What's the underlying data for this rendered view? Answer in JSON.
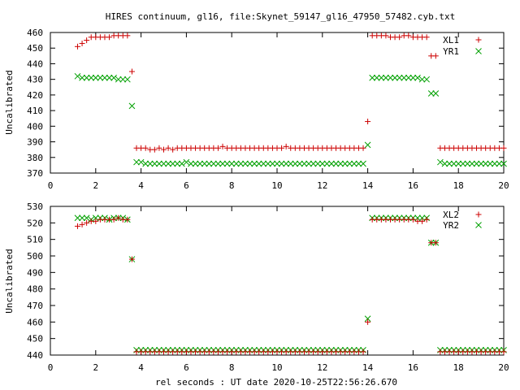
{
  "title": "HIRES continuum, gl16, file:Skynet_59147_gl16_47950_57482.cyb.txt",
  "x_axis_label": "rel seconds : UT date 2020-10-25T22:56:26.670",
  "chart_data": [
    {
      "type": "scatter",
      "ylabel": "Uncalibrated",
      "xlim": [
        0,
        20
      ],
      "ylim": [
        370,
        460
      ],
      "xticks": [
        "0",
        "2",
        "4",
        "6",
        "8",
        "10",
        "12",
        "14",
        "16",
        "18",
        "20"
      ],
      "yticks": [
        "370",
        "380",
        "390",
        "400",
        "410",
        "420",
        "430",
        "440",
        "450",
        "460"
      ],
      "legend_position": "top-right",
      "series": [
        {
          "name": "XL1",
          "marker": "plus",
          "color": "#cc0000",
          "x": [
            1.2,
            1.4,
            1.6,
            1.8,
            2.0,
            2.2,
            2.4,
            2.6,
            2.8,
            3.0,
            3.2,
            3.4,
            3.6,
            3.8,
            4.0,
            4.2,
            4.4,
            4.6,
            4.8,
            5.0,
            5.2,
            5.4,
            5.6,
            5.8,
            6.0,
            6.2,
            6.4,
            6.6,
            6.8,
            7.0,
            7.2,
            7.4,
            7.6,
            7.8,
            8.0,
            8.2,
            8.4,
            8.6,
            8.8,
            9.0,
            9.2,
            9.4,
            9.6,
            9.8,
            10.0,
            10.2,
            10.4,
            10.6,
            10.8,
            11.0,
            11.2,
            11.4,
            11.6,
            11.8,
            12.0,
            12.2,
            12.4,
            12.6,
            12.8,
            13.0,
            13.2,
            13.4,
            13.6,
            13.8,
            14.0,
            14.2,
            14.4,
            14.6,
            14.8,
            15.0,
            15.2,
            15.4,
            15.6,
            15.8,
            16.0,
            16.2,
            16.4,
            16.6,
            16.8,
            17.0,
            17.2,
            17.4,
            17.6,
            17.8,
            18.0,
            18.2,
            18.4,
            18.6,
            18.8,
            19.0,
            19.2,
            19.4,
            19.6,
            19.8,
            20.0
          ],
          "y": [
            451,
            453,
            455,
            457,
            457,
            457,
            457,
            457,
            458,
            458,
            458,
            458,
            435,
            386,
            386,
            386,
            385,
            385,
            386,
            385,
            386,
            385,
            386,
            386,
            386,
            386,
            386,
            386,
            386,
            386,
            386,
            386,
            387,
            386,
            386,
            386,
            386,
            386,
            386,
            386,
            386,
            386,
            386,
            386,
            386,
            386,
            387,
            386,
            386,
            386,
            386,
            386,
            386,
            386,
            386,
            386,
            386,
            386,
            386,
            386,
            386,
            386,
            386,
            386,
            403,
            458,
            458,
            458,
            458,
            457,
            457,
            457,
            458,
            458,
            457,
            457,
            457,
            457,
            445,
            445,
            386,
            386,
            386,
            386,
            386,
            386,
            386,
            386,
            386,
            386,
            386,
            386,
            386,
            386,
            386
          ]
        },
        {
          "name": "YR1",
          "marker": "cross",
          "color": "#00a000",
          "x": [
            1.2,
            1.4,
            1.6,
            1.8,
            2.0,
            2.2,
            2.4,
            2.6,
            2.8,
            3.0,
            3.2,
            3.4,
            3.6,
            3.8,
            4.0,
            4.2,
            4.4,
            4.6,
            4.8,
            5.0,
            5.2,
            5.4,
            5.6,
            5.8,
            6.0,
            6.2,
            6.4,
            6.6,
            6.8,
            7.0,
            7.2,
            7.4,
            7.6,
            7.8,
            8.0,
            8.2,
            8.4,
            8.6,
            8.8,
            9.0,
            9.2,
            9.4,
            9.6,
            9.8,
            10.0,
            10.2,
            10.4,
            10.6,
            10.8,
            11.0,
            11.2,
            11.4,
            11.6,
            11.8,
            12.0,
            12.2,
            12.4,
            12.6,
            12.8,
            13.0,
            13.2,
            13.4,
            13.6,
            13.8,
            14.0,
            14.2,
            14.4,
            14.6,
            14.8,
            15.0,
            15.2,
            15.4,
            15.6,
            15.8,
            16.0,
            16.2,
            16.4,
            16.6,
            16.8,
            17.0,
            17.2,
            17.4,
            17.6,
            17.8,
            18.0,
            18.2,
            18.4,
            18.6,
            18.8,
            19.0,
            19.2,
            19.4,
            19.6,
            19.8,
            20.0
          ],
          "y": [
            432,
            431,
            431,
            431,
            431,
            431,
            431,
            431,
            431,
            430,
            430,
            430,
            413,
            377,
            377,
            376,
            376,
            376,
            376,
            376,
            376,
            376,
            376,
            376,
            377,
            376,
            376,
            376,
            376,
            376,
            376,
            376,
            376,
            376,
            376,
            376,
            376,
            376,
            376,
            376,
            376,
            376,
            376,
            376,
            376,
            376,
            376,
            376,
            376,
            376,
            376,
            376,
            376,
            376,
            376,
            376,
            376,
            376,
            376,
            376,
            376,
            376,
            376,
            376,
            388,
            431,
            431,
            431,
            431,
            431,
            431,
            431,
            431,
            431,
            431,
            431,
            430,
            430,
            421,
            421,
            377,
            376,
            376,
            376,
            376,
            376,
            376,
            376,
            376,
            376,
            376,
            376,
            376,
            376,
            376
          ]
        }
      ]
    },
    {
      "type": "scatter",
      "ylabel": "Uncalibrated",
      "xlim": [
        0,
        20
      ],
      "ylim": [
        440,
        530
      ],
      "xticks": [
        "0",
        "2",
        "4",
        "6",
        "8",
        "10",
        "12",
        "14",
        "16",
        "18",
        "20"
      ],
      "yticks": [
        "440",
        "450",
        "460",
        "470",
        "480",
        "490",
        "500",
        "510",
        "520",
        "530"
      ],
      "legend_position": "top-right",
      "series": [
        {
          "name": "XL2",
          "marker": "plus",
          "color": "#cc0000",
          "x": [
            1.2,
            1.4,
            1.6,
            1.8,
            2.0,
            2.2,
            2.4,
            2.6,
            2.8,
            3.0,
            3.2,
            3.4,
            3.6,
            3.8,
            4.0,
            4.2,
            4.4,
            4.6,
            4.8,
            5.0,
            5.2,
            5.4,
            5.6,
            5.8,
            6.0,
            6.2,
            6.4,
            6.6,
            6.8,
            7.0,
            7.2,
            7.4,
            7.6,
            7.8,
            8.0,
            8.2,
            8.4,
            8.6,
            8.8,
            9.0,
            9.2,
            9.4,
            9.6,
            9.8,
            10.0,
            10.2,
            10.4,
            10.6,
            10.8,
            11.0,
            11.2,
            11.4,
            11.6,
            11.8,
            12.0,
            12.2,
            12.4,
            12.6,
            12.8,
            13.0,
            13.2,
            13.4,
            13.6,
            13.8,
            14.0,
            14.2,
            14.4,
            14.6,
            14.8,
            15.0,
            15.2,
            15.4,
            15.6,
            15.8,
            16.0,
            16.2,
            16.4,
            16.6,
            16.8,
            17.0,
            17.2,
            17.4,
            17.6,
            17.8,
            18.0,
            18.2,
            18.4,
            18.6,
            18.8,
            19.0,
            19.2,
            19.4,
            19.6,
            19.8,
            20.0
          ],
          "y": [
            518,
            519,
            520,
            521,
            521,
            522,
            522,
            522,
            522,
            523,
            522,
            522,
            498,
            442,
            442,
            442,
            442,
            442,
            442,
            442,
            442,
            442,
            442,
            442,
            442,
            442,
            442,
            442,
            442,
            442,
            442,
            442,
            442,
            442,
            442,
            442,
            442,
            442,
            442,
            442,
            442,
            442,
            442,
            442,
            442,
            442,
            442,
            442,
            442,
            442,
            442,
            442,
            442,
            442,
            442,
            442,
            442,
            442,
            442,
            442,
            442,
            442,
            442,
            442,
            460,
            522,
            522,
            522,
            522,
            522,
            522,
            522,
            522,
            522,
            522,
            521,
            521,
            522,
            508,
            508,
            442,
            442,
            442,
            442,
            442,
            442,
            442,
            442,
            442,
            442,
            442,
            442,
            442,
            442,
            442
          ]
        },
        {
          "name": "YR2",
          "marker": "cross",
          "color": "#00a000",
          "x": [
            1.2,
            1.4,
            1.6,
            1.8,
            2.0,
            2.2,
            2.4,
            2.6,
            2.8,
            3.0,
            3.2,
            3.4,
            3.6,
            3.8,
            4.0,
            4.2,
            4.4,
            4.6,
            4.8,
            5.0,
            5.2,
            5.4,
            5.6,
            5.8,
            6.0,
            6.2,
            6.4,
            6.6,
            6.8,
            7.0,
            7.2,
            7.4,
            7.6,
            7.8,
            8.0,
            8.2,
            8.4,
            8.6,
            8.8,
            9.0,
            9.2,
            9.4,
            9.6,
            9.8,
            10.0,
            10.2,
            10.4,
            10.6,
            10.8,
            11.0,
            11.2,
            11.4,
            11.6,
            11.8,
            12.0,
            12.2,
            12.4,
            12.6,
            12.8,
            13.0,
            13.2,
            13.4,
            13.6,
            13.8,
            14.0,
            14.2,
            14.4,
            14.6,
            14.8,
            15.0,
            15.2,
            15.4,
            15.6,
            15.8,
            16.0,
            16.2,
            16.4,
            16.6,
            16.8,
            17.0,
            17.2,
            17.4,
            17.6,
            17.8,
            18.0,
            18.2,
            18.4,
            18.6,
            18.8,
            19.0,
            19.2,
            19.4,
            19.6,
            19.8,
            20.0
          ],
          "y": [
            523,
            523,
            523,
            522,
            523,
            523,
            523,
            522,
            523,
            523,
            523,
            522,
            498,
            443,
            443,
            443,
            443,
            443,
            443,
            443,
            443,
            443,
            443,
            443,
            443,
            443,
            443,
            443,
            443,
            443,
            443,
            443,
            443,
            443,
            443,
            443,
            443,
            443,
            443,
            443,
            443,
            443,
            443,
            443,
            443,
            443,
            443,
            443,
            443,
            443,
            443,
            443,
            443,
            443,
            443,
            443,
            443,
            443,
            443,
            443,
            443,
            443,
            443,
            443,
            462,
            523,
            523,
            523,
            523,
            523,
            523,
            523,
            523,
            523,
            523,
            523,
            523,
            523,
            508,
            508,
            443,
            443,
            443,
            443,
            443,
            443,
            443,
            443,
            443,
            443,
            443,
            443,
            443,
            443,
            443
          ]
        }
      ]
    }
  ]
}
